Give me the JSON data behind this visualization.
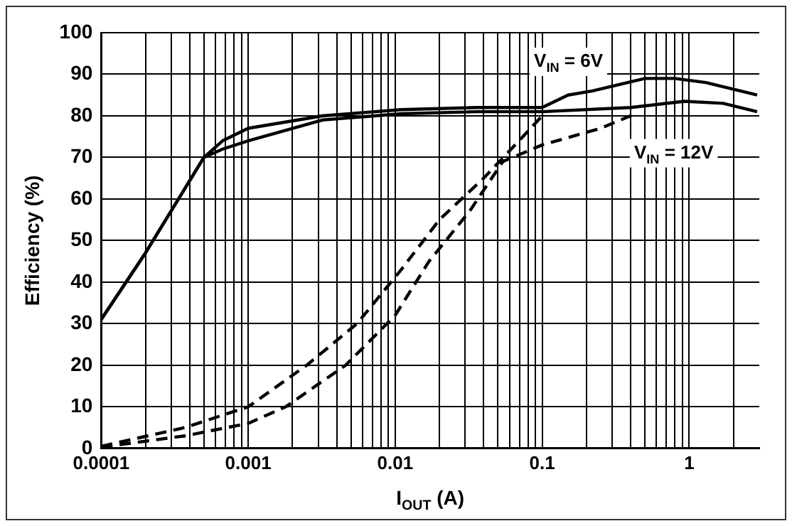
{
  "chart_data": {
    "type": "line",
    "xlabel": "I$_{OUT}$ (A)",
    "ylabel": "Efficiency (%)",
    "log": "x",
    "xlim": [
      0.0001,
      3
    ],
    "ylim": [
      0,
      100
    ],
    "xticks": [
      0.0001,
      {
        "value": 0.0002,
        "label": null
      },
      {
        "value": 0.0003,
        "label": null
      },
      {
        "value": 0.0004,
        "label": null
      },
      {
        "value": 0.0005,
        "label": null
      },
      {
        "value": 0.0006,
        "label": null
      },
      {
        "value": 0.0007,
        "label": null
      },
      {
        "value": 0.0008,
        "label": null
      },
      {
        "value": 0.0009,
        "label": null
      },
      0.001,
      {
        "value": 0.002,
        "label": null
      },
      {
        "value": 0.003,
        "label": null
      },
      {
        "value": 0.004,
        "label": null
      },
      {
        "value": 0.005,
        "label": null
      },
      {
        "value": 0.006,
        "label": null
      },
      {
        "value": 0.007,
        "label": null
      },
      {
        "value": 0.008,
        "label": null
      },
      {
        "value": 0.009,
        "label": null
      },
      0.01,
      {
        "value": 0.02,
        "label": null
      },
      {
        "value": 0.03,
        "label": null
      },
      {
        "value": 0.04,
        "label": null
      },
      {
        "value": 0.05,
        "label": null
      },
      {
        "value": 0.06,
        "label": null
      },
      {
        "value": 0.07,
        "label": null
      },
      {
        "value": 0.08,
        "label": null
      },
      {
        "value": 0.09,
        "label": null
      },
      0.1,
      {
        "value": 0.2,
        "label": null
      },
      {
        "value": 0.3,
        "label": null
      },
      {
        "value": 0.4,
        "label": null
      },
      {
        "value": 0.5,
        "label": null
      },
      {
        "value": 0.6,
        "label": null
      },
      {
        "value": 0.7,
        "label": null
      },
      {
        "value": 0.8,
        "label": null
      },
      {
        "value": 0.9,
        "label": null
      },
      1,
      {
        "value": 2,
        "label": null
      }
    ],
    "yticks": [
      0,
      10,
      20,
      30,
      40,
      50,
      60,
      70,
      80,
      90,
      100
    ],
    "grid": true,
    "legend": false,
    "marker": "none",
    "annotations": [
      "V$_{IN}$ = 6V",
      "V$_{IN}$ = 12V"
    ],
    "series": [
      {
        "color": "#000000",
        "line_style": "solid",
        "x": [
          0.0001,
          0.0002,
          0.0005,
          0.00067,
          0.001,
          0.0032,
          0.011,
          0.036,
          0.1,
          0.15,
          0.22,
          0.5,
          0.8,
          1.3,
          2.9
        ],
        "values": [
          31,
          47,
          70,
          74,
          77,
          80,
          81.5,
          82,
          82,
          85,
          86,
          89,
          89,
          88,
          85
        ]
      },
      {
        "color": "#000000",
        "line_style": "solid",
        "x": [
          0.0001,
          0.0002,
          0.0005,
          0.00067,
          0.001,
          0.0032,
          0.011,
          0.036,
          0.1,
          0.4,
          0.93,
          1.7,
          2.9
        ],
        "values": [
          31,
          47,
          70,
          72,
          74,
          79,
          80.5,
          81,
          81,
          82,
          83.5,
          83,
          81
        ]
      },
      {
        "color": "#000000",
        "line_style": "dashed",
        "x": [
          0.0001,
          0.00037,
          0.001,
          0.0025,
          0.0055,
          0.011,
          0.02,
          0.04,
          0.074,
          0.1
        ],
        "values": [
          0.5,
          5,
          10,
          20,
          30,
          43,
          55,
          65,
          75,
          80
        ]
      },
      {
        "color": "#000000",
        "line_style": "dashed",
        "x": [
          0.0001,
          0.00037,
          0.001,
          0.0018,
          0.0046,
          0.01,
          0.017,
          0.032,
          0.054,
          0.1,
          0.25,
          0.43
        ],
        "values": [
          0.3,
          3,
          6,
          10,
          20,
          32,
          45,
          57,
          69,
          73,
          77,
          80.5
        ]
      }
    ]
  }
}
